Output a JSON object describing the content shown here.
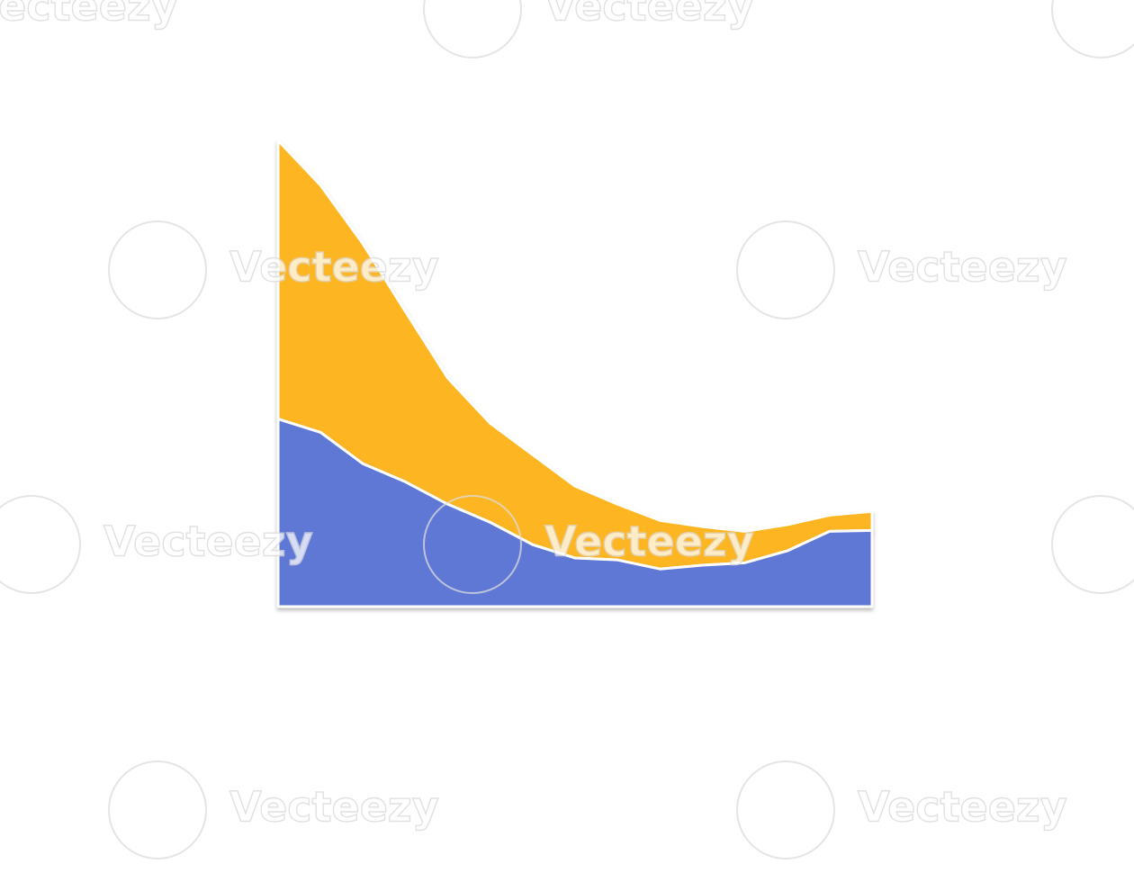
{
  "chart_data": {
    "type": "stacked-area",
    "categories": [
      null,
      null,
      null,
      null,
      null,
      null,
      null,
      null,
      null,
      null,
      null,
      null,
      null,
      null,
      null
    ],
    "series": [
      {
        "color": "#5f78d6",
        "values": [
          39.4,
          36.6,
          30,
          26.2,
          21.5,
          17.7,
          13,
          10.2,
          9.8,
          7.9,
          8.7,
          9.2,
          11.7,
          15.8,
          16
        ]
      },
      {
        "color": "#fdb521",
        "values": [
          58.5,
          51.9,
          46.2,
          35.8,
          26.5,
          20.8,
          18.9,
          15.1,
          11.7,
          10.2,
          8.1,
          6.6,
          5.5,
          3.4,
          4
        ]
      }
    ],
    "ylim": [
      0,
      100
    ]
  },
  "watermark": "Vecteezy"
}
